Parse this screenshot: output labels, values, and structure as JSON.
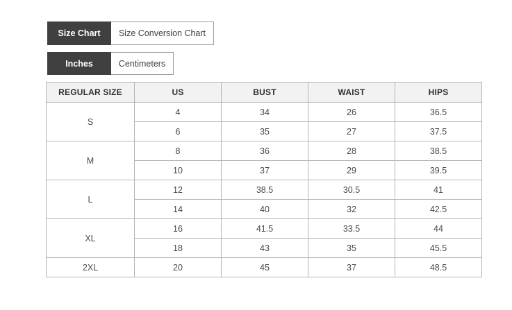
{
  "tabs": {
    "chart": [
      {
        "label": "Size Chart",
        "active": true
      },
      {
        "label": "Size Conversion Chart",
        "active": false
      }
    ],
    "units": [
      {
        "label": "Inches",
        "active": true
      },
      {
        "label": "Centimeters",
        "active": false
      }
    ]
  },
  "table": {
    "headers": [
      "REGULAR SIZE",
      "US",
      "BUST",
      "WAIST",
      "HIPS"
    ],
    "groups": [
      {
        "size": "S",
        "rows": [
          [
            "4",
            "34",
            "26",
            "36.5"
          ],
          [
            "6",
            "35",
            "27",
            "37.5"
          ]
        ]
      },
      {
        "size": "M",
        "rows": [
          [
            "8",
            "36",
            "28",
            "38.5"
          ],
          [
            "10",
            "37",
            "29",
            "39.5"
          ]
        ]
      },
      {
        "size": "L",
        "rows": [
          [
            "12",
            "38.5",
            "30.5",
            "41"
          ],
          [
            "14",
            "40",
            "32",
            "42.5"
          ]
        ]
      },
      {
        "size": "XL",
        "rows": [
          [
            "16",
            "41.5",
            "33.5",
            "44"
          ],
          [
            "18",
            "43",
            "35",
            "45.5"
          ]
        ]
      },
      {
        "size": "2XL",
        "rows": [
          [
            "20",
            "45",
            "37",
            "48.5"
          ]
        ]
      }
    ]
  },
  "colors": {
    "active_tab_bg": "#404040",
    "active_tab_text": "#ffffff",
    "inactive_tab_text": "#3f3f3f",
    "tab_border": "#9b9b9b",
    "header_bg": "#f2f2f2",
    "header_text": "#303030",
    "cell_border": "#b5b5b5",
    "outer_border": "#979797",
    "text": "#4a4a4a"
  }
}
